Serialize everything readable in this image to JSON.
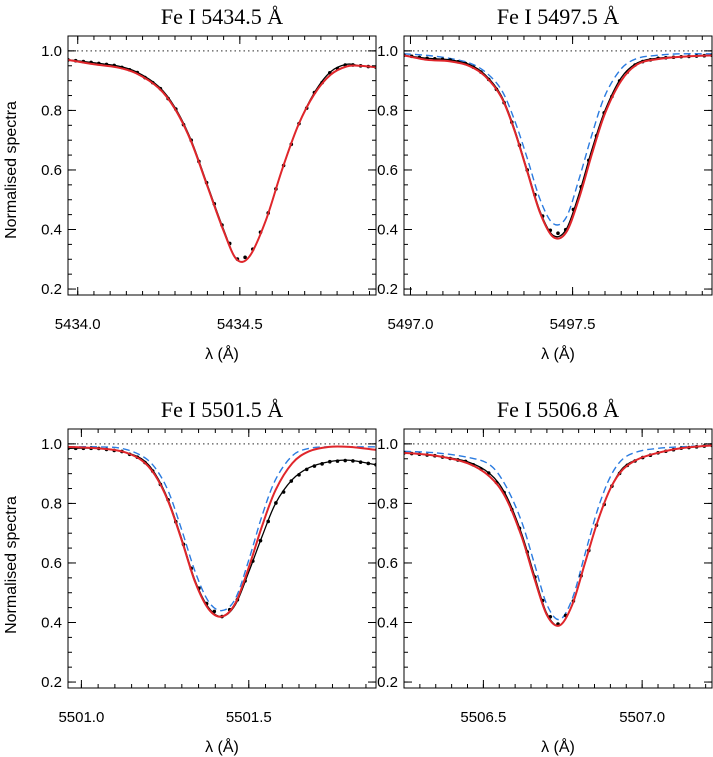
{
  "figure": {
    "ylabel": "Normalised spectra",
    "xlabel": "λ (Å)",
    "colors": {
      "observed": "#000000",
      "fit": "#e0262b",
      "comparison": "#2a7be0",
      "reference": "#555555"
    }
  },
  "chart_data": [
    {
      "type": "line",
      "title": "Fe I  5434.5 Å",
      "xlim": [
        5433.97,
        5434.92
      ],
      "ylim": [
        0.18,
        1.05
      ],
      "xticks": [
        5434.0,
        5434.5
      ],
      "xtick_labels": [
        "5434.0",
        "5434.5"
      ],
      "yticks": [
        0.2,
        0.4,
        0.6,
        0.8,
        1.0
      ],
      "ytick_labels": [
        "0.2",
        "0.4",
        "0.6",
        "0.8",
        "1.0"
      ],
      "reference_level": 1.0,
      "x": [
        5433.97,
        5434.05,
        5434.12,
        5434.18,
        5434.25,
        5434.3,
        5434.35,
        5434.4,
        5434.45,
        5434.49,
        5434.53,
        5434.58,
        5434.63,
        5434.68,
        5434.73,
        5434.78,
        5434.83,
        5434.87,
        5434.92
      ],
      "series": [
        {
          "name": "",
          "role": "observed",
          "values": [
            0.97,
            0.96,
            0.95,
            0.93,
            0.88,
            0.81,
            0.7,
            0.55,
            0.4,
            0.3,
            0.31,
            0.43,
            0.6,
            0.75,
            0.86,
            0.93,
            0.955,
            0.95,
            0.945
          ]
        },
        {
          "name": "",
          "role": "fit",
          "values": [
            0.97,
            0.955,
            0.945,
            0.925,
            0.875,
            0.805,
            0.695,
            0.545,
            0.395,
            0.3,
            0.31,
            0.43,
            0.6,
            0.75,
            0.855,
            0.92,
            0.948,
            0.95,
            0.945
          ]
        }
      ]
    },
    {
      "type": "line",
      "title": "Fe I  5497.5 Å",
      "xlim": [
        5496.98,
        5497.93
      ],
      "ylim": [
        0.18,
        1.05
      ],
      "xticks": [
        5497.0,
        5497.5
      ],
      "xtick_labels": [
        "5497.0",
        "5497.5"
      ],
      "yticks": [
        0.2,
        0.4,
        0.6,
        0.8,
        1.0
      ],
      "ytick_labels": [
        "0.2",
        "0.4",
        "0.6",
        "0.8",
        "1.0"
      ],
      "reference_level": 1.0,
      "x": [
        5496.98,
        5497.05,
        5497.12,
        5497.18,
        5497.23,
        5497.28,
        5497.32,
        5497.36,
        5497.4,
        5497.44,
        5497.48,
        5497.52,
        5497.56,
        5497.6,
        5497.65,
        5497.7,
        5497.76,
        5497.83,
        5497.93
      ],
      "series": [
        {
          "name": "",
          "role": "observed",
          "values": [
            0.985,
            0.975,
            0.97,
            0.955,
            0.92,
            0.85,
            0.74,
            0.6,
            0.46,
            0.38,
            0.4,
            0.52,
            0.67,
            0.8,
            0.91,
            0.96,
            0.975,
            0.98,
            0.985
          ]
        },
        {
          "name": "",
          "role": "fit",
          "values": [
            0.985,
            0.97,
            0.965,
            0.95,
            0.915,
            0.845,
            0.735,
            0.595,
            0.455,
            0.375,
            0.39,
            0.505,
            0.655,
            0.79,
            0.9,
            0.955,
            0.972,
            0.98,
            0.985
          ]
        },
        {
          "name": "",
          "role": "comparison",
          "values": [
            0.99,
            0.985,
            0.975,
            0.96,
            0.93,
            0.87,
            0.77,
            0.64,
            0.5,
            0.42,
            0.44,
            0.57,
            0.72,
            0.85,
            0.94,
            0.975,
            0.985,
            0.99,
            0.99
          ]
        }
      ]
    },
    {
      "type": "line",
      "title": "Fe I  5501.5 Å",
      "xlim": [
        5500.96,
        5501.88
      ],
      "ylim": [
        0.18,
        1.05
      ],
      "xticks": [
        5501.0,
        5501.5
      ],
      "xtick_labels": [
        "5501.0",
        "5501.5"
      ],
      "yticks": [
        0.2,
        0.4,
        0.6,
        0.8,
        1.0
      ],
      "ytick_labels": [
        "0.2",
        "0.4",
        "0.6",
        "0.8",
        "1.0"
      ],
      "reference_level": 1.0,
      "x": [
        5500.96,
        5501.05,
        5501.12,
        5501.18,
        5501.22,
        5501.26,
        5501.3,
        5501.34,
        5501.38,
        5501.42,
        5501.46,
        5501.5,
        5501.54,
        5501.58,
        5501.63,
        5501.68,
        5501.74,
        5501.8,
        5501.88
      ],
      "series": [
        {
          "name": "",
          "role": "observed",
          "values": [
            0.985,
            0.985,
            0.975,
            0.95,
            0.9,
            0.81,
            0.68,
            0.54,
            0.45,
            0.42,
            0.46,
            0.57,
            0.69,
            0.8,
            0.88,
            0.92,
            0.94,
            0.945,
            0.93
          ]
        },
        {
          "name": "",
          "role": "fit",
          "values": [
            0.99,
            0.985,
            0.975,
            0.945,
            0.895,
            0.805,
            0.675,
            0.535,
            0.445,
            0.42,
            0.465,
            0.585,
            0.725,
            0.845,
            0.935,
            0.975,
            0.99,
            0.99,
            0.98
          ]
        },
        {
          "name": "",
          "role": "comparison",
          "values": [
            0.99,
            0.99,
            0.985,
            0.96,
            0.92,
            0.84,
            0.71,
            0.57,
            0.47,
            0.44,
            0.48,
            0.61,
            0.76,
            0.88,
            0.96,
            0.985,
            0.99,
            0.99,
            0.99
          ]
        }
      ]
    },
    {
      "type": "line",
      "title": "Fe I  5506.8 Å",
      "xlim": [
        5506.25,
        5507.22
      ],
      "ylim": [
        0.18,
        1.05
      ],
      "xticks": [
        5506.5,
        5507.0
      ],
      "xtick_labels": [
        "5506.5",
        "5507.0"
      ],
      "yticks": [
        0.2,
        0.4,
        0.6,
        0.8,
        1.0
      ],
      "ytick_labels": [
        "0.2",
        "0.4",
        "0.6",
        "0.8",
        "1.0"
      ],
      "reference_level": 1.0,
      "x": [
        5506.25,
        5506.35,
        5506.45,
        5506.52,
        5506.57,
        5506.62,
        5506.66,
        5506.7,
        5506.74,
        5506.78,
        5506.82,
        5506.86,
        5506.9,
        5506.94,
        5506.99,
        5507.05,
        5507.12,
        5507.22
      ],
      "series": [
        {
          "name": "",
          "role": "observed",
          "values": [
            0.97,
            0.96,
            0.94,
            0.9,
            0.83,
            0.7,
            0.56,
            0.43,
            0.39,
            0.46,
            0.6,
            0.74,
            0.85,
            0.92,
            0.95,
            0.97,
            0.985,
            0.995
          ]
        },
        {
          "name": "",
          "role": "fit",
          "values": [
            0.97,
            0.96,
            0.935,
            0.89,
            0.82,
            0.69,
            0.55,
            0.425,
            0.39,
            0.46,
            0.6,
            0.74,
            0.85,
            0.915,
            0.95,
            0.97,
            0.985,
            0.995
          ]
        },
        {
          "name": "",
          "role": "comparison",
          "values": [
            0.975,
            0.97,
            0.955,
            0.93,
            0.86,
            0.74,
            0.6,
            0.46,
            0.41,
            0.48,
            0.63,
            0.78,
            0.89,
            0.95,
            0.975,
            0.985,
            0.99,
            0.995
          ]
        }
      ]
    }
  ]
}
